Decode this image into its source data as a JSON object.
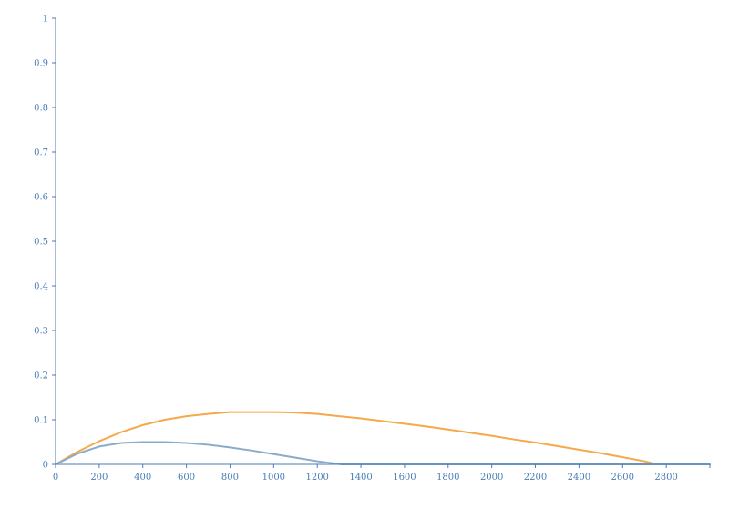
{
  "chart_data": {
    "type": "line",
    "title": "",
    "xlabel": "",
    "ylabel": "",
    "xlim": [
      0,
      3000
    ],
    "ylim": [
      0,
      1
    ],
    "grid": false,
    "axis_color": "#4a7db5",
    "x_ticks": [
      0,
      200,
      400,
      600,
      800,
      1000,
      1200,
      1400,
      1600,
      1800,
      2000,
      2200,
      2400,
      2600,
      2800
    ],
    "x_tick_labels": [
      "0",
      "200",
      "400",
      "600",
      "800",
      "1000",
      "1200",
      "1400",
      "1600",
      "1800",
      "2000",
      "2200",
      "2400",
      "2600",
      "2800"
    ],
    "y_ticks": [
      0,
      0.1,
      0.2,
      0.3,
      0.4,
      0.5,
      0.6,
      0.7,
      0.8,
      0.9,
      1
    ],
    "y_tick_labels": [
      "0",
      "0.1",
      "0.2",
      "0.3",
      "0.4",
      "0.5",
      "0.6",
      "0.7",
      "0.8",
      "0.9",
      "1"
    ],
    "series": [
      {
        "color": "#f5a94a",
        "x": [
          0,
          100,
          200,
          300,
          400,
          500,
          600,
          700,
          800,
          900,
          1000,
          1100,
          1200,
          1300,
          1400,
          1500,
          1600,
          1700,
          1800,
          1900,
          2000,
          2100,
          2200,
          2300,
          2400,
          2500,
          2600,
          2700,
          2760,
          2800,
          2900,
          3000
        ],
        "y": [
          0,
          0.028,
          0.052,
          0.072,
          0.088,
          0.1,
          0.108,
          0.113,
          0.117,
          0.117,
          0.117,
          0.116,
          0.113,
          0.108,
          0.103,
          0.097,
          0.091,
          0.085,
          0.078,
          0.071,
          0.064,
          0.056,
          0.049,
          0.041,
          0.033,
          0.025,
          0.016,
          0.007,
          0,
          0,
          0,
          0
        ]
      },
      {
        "color": "#8aabc8",
        "x": [
          0,
          100,
          200,
          300,
          400,
          500,
          600,
          700,
          800,
          900,
          1000,
          1100,
          1200,
          1310,
          1400,
          1600,
          1800,
          2000,
          2200,
          2400,
          2600,
          2800,
          3000
        ],
        "y": [
          0,
          0.024,
          0.04,
          0.048,
          0.05,
          0.05,
          0.048,
          0.044,
          0.038,
          0.031,
          0.023,
          0.015,
          0.007,
          0,
          0,
          0,
          0,
          0,
          0,
          0,
          0,
          0,
          0
        ]
      }
    ]
  }
}
